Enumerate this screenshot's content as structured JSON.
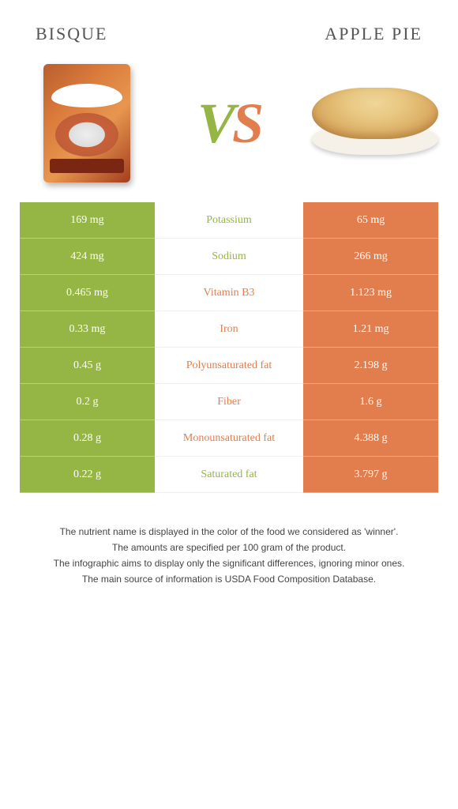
{
  "leftTitle": "BISQUE",
  "rightTitle": "APPLE PIE",
  "vs_v": "V",
  "vs_s": "S",
  "colors": {
    "left": "#95b544",
    "right": "#e27d4e",
    "background": "#ffffff"
  },
  "rows": [
    {
      "left": "169 mg",
      "label": "Potassium",
      "right": "65 mg",
      "winner": "left"
    },
    {
      "left": "424 mg",
      "label": "Sodium",
      "right": "266 mg",
      "winner": "left"
    },
    {
      "left": "0.465 mg",
      "label": "Vitamin B3",
      "right": "1.123 mg",
      "winner": "right"
    },
    {
      "left": "0.33 mg",
      "label": "Iron",
      "right": "1.21 mg",
      "winner": "right"
    },
    {
      "left": "0.45 g",
      "label": "Polyunsaturated fat",
      "right": "2.198 g",
      "winner": "right"
    },
    {
      "left": "0.2 g",
      "label": "Fiber",
      "right": "1.6 g",
      "winner": "right"
    },
    {
      "left": "0.28 g",
      "label": "Monounsaturated fat",
      "right": "4.388 g",
      "winner": "right"
    },
    {
      "left": "0.22 g",
      "label": "Saturated fat",
      "right": "3.797 g",
      "winner": "left"
    }
  ],
  "footer": [
    "The nutrient name is displayed in the color of the food we considered as 'winner'.",
    "The amounts are specified per 100 gram of the product.",
    "The infographic aims to display only the significant differences, ignoring minor ones.",
    "The main source of information is USDA Food Composition Database."
  ]
}
